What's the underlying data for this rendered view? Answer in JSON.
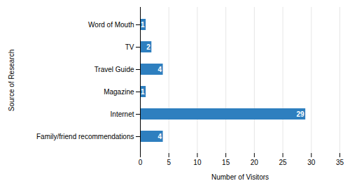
{
  "chart_data": {
    "type": "bar",
    "orientation": "horizontal",
    "categories": [
      "Family/friend recommendations",
      "Internet",
      "Magazine",
      "Travel Guide",
      "TV",
      "Word of Mouth"
    ],
    "values": [
      4,
      29,
      1,
      4,
      2,
      1
    ],
    "color": "#2E7FBF",
    "xlabel": "Number of Visitors",
    "ylabel": "Source of Research",
    "xlim": [
      0,
      35
    ],
    "xticks": [
      0,
      5,
      10,
      15,
      20,
      25,
      30,
      35
    ],
    "grid": true,
    "data_labels": true
  }
}
